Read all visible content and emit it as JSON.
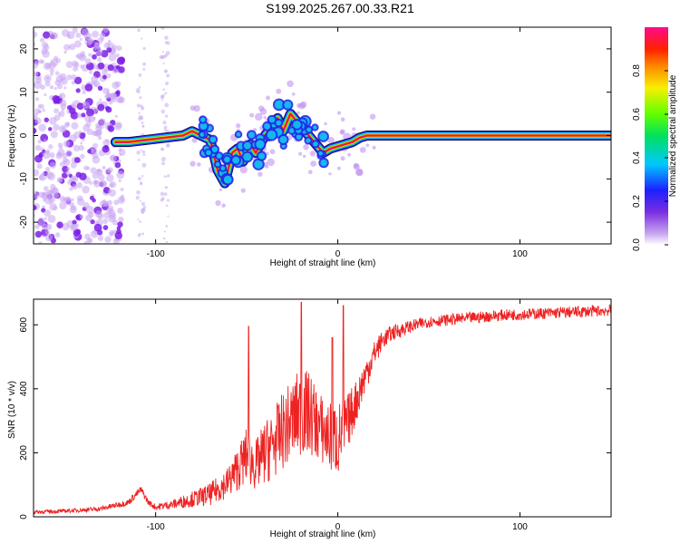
{
  "title": "S199.2025.267.00.33.R21",
  "colors": {
    "snr_line": "#ee2222",
    "frame": "#000000",
    "spectrogram_ridge": "#e0106a",
    "scatter_tint": "#9c44ee"
  },
  "colorbar": {
    "label": "Normalized spectral amplitude",
    "ticks": [
      "0.0",
      "0.2",
      "0.4",
      "0.6",
      "0.8"
    ],
    "tick_values": [
      0.0,
      0.2,
      0.4,
      0.6,
      0.8
    ],
    "range": [
      0,
      1
    ],
    "colormap": "rainbow (white-violet → blue → cyan → green → yellow → orange → red → magenta)"
  },
  "chart_data": [
    {
      "type": "heatmap",
      "title": "S199.2025.267.00.33.R21",
      "xlabel": "Height of straight line (km)",
      "ylabel": "Frequency (Hz)",
      "xlim": [
        -167,
        150
      ],
      "ylim": [
        -25,
        25
      ],
      "xticks": [
        -100,
        0,
        100
      ],
      "xtick_labels": [
        "-100",
        "0",
        "100"
      ],
      "yticks": [
        -20,
        -10,
        0,
        10,
        20
      ],
      "ytick_labels": [
        "-20",
        "-10",
        "0",
        "10",
        "20"
      ],
      "grid": false,
      "ridge": {
        "description": "dominant spectral ridge (normalized amplitude 1.0) at ~0 Hz",
        "x": [
          -122,
          -115,
          -105,
          -95,
          -85,
          -80,
          -75,
          -70,
          -66,
          -62,
          -58,
          -55,
          -52,
          -48,
          -45,
          -40,
          -36,
          -33,
          -30,
          -26,
          -22,
          -20,
          -16,
          -12,
          -8,
          -4,
          0,
          4,
          8,
          12,
          16,
          150
        ],
        "y": [
          -1.5,
          -1.5,
          -1,
          -0.5,
          0,
          1,
          0,
          -1,
          -8,
          -11,
          -4,
          -3,
          -6,
          -2,
          -4,
          0,
          2,
          4,
          1,
          5,
          3,
          2,
          0,
          -2,
          -4,
          -3,
          -2.5,
          -2,
          -1.5,
          -0.5,
          0,
          0
        ]
      },
      "scatter_region": {
        "description": "low-amplitude speckle noise at heights below -120 km",
        "x_range": [
          -167,
          -118
        ],
        "y_range": [
          -25,
          25
        ]
      }
    },
    {
      "type": "line",
      "xlabel": "Height of straight line (km)",
      "ylabel": "SNR (10 * v/v)",
      "xlim": [
        -167,
        150
      ],
      "ylim": [
        0,
        680
      ],
      "xticks": [
        -100,
        0,
        100
      ],
      "xtick_labels": [
        "-100",
        "0",
        "100"
      ],
      "yticks": [
        0,
        200,
        400,
        600
      ],
      "ytick_labels": [
        "0",
        "200",
        "400",
        "600"
      ],
      "grid": false,
      "series": [
        {
          "color": "#ee2222",
          "x": [
            -167,
            -150,
            -130,
            -115,
            -108,
            -104,
            -100,
            -90,
            -80,
            -70,
            -60,
            -55,
            -50,
            -45,
            -40,
            -35,
            -30,
            -25,
            -20,
            -15,
            -10,
            -5,
            0,
            5,
            10,
            15,
            20,
            25,
            30,
            40,
            50,
            70,
            90,
            110,
            130,
            150
          ],
          "y": [
            15,
            18,
            25,
            45,
            85,
            45,
            30,
            40,
            55,
            70,
            110,
            150,
            190,
            160,
            200,
            230,
            270,
            300,
            330,
            320,
            280,
            250,
            240,
            290,
            360,
            440,
            510,
            555,
            575,
            595,
            610,
            620,
            630,
            635,
            640,
            645
          ],
          "spread": [
            6,
            6,
            8,
            10,
            12,
            10,
            10,
            15,
            25,
            35,
            50,
            70,
            90,
            80,
            100,
            110,
            120,
            130,
            140,
            130,
            110,
            110,
            120,
            90,
            70,
            55,
            40,
            30,
            25,
            20,
            18,
            18,
            18,
            18,
            18,
            18
          ],
          "peaks": [
            {
              "x": -49,
              "y": 595
            },
            {
              "x": -20,
              "y": 670
            },
            {
              "x": 3,
              "y": 660
            },
            {
              "x": -3,
              "y": 560
            }
          ]
        }
      ]
    }
  ]
}
